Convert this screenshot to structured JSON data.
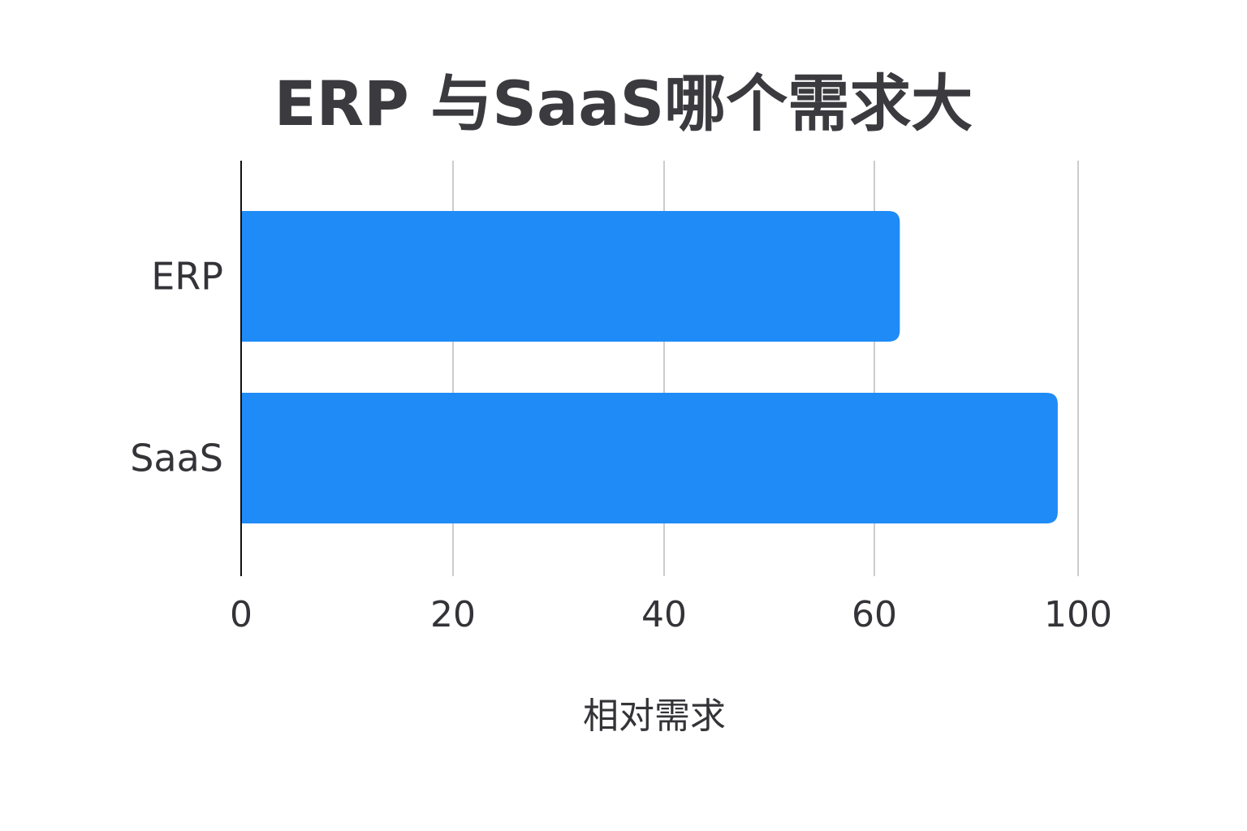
{
  "chart_data": {
    "type": "bar",
    "orientation": "horizontal",
    "title": "ERP 与SaaS哪个需求大",
    "xlabel": "相对需求",
    "ylabel": "",
    "categories": [
      "ERP",
      "SaaS"
    ],
    "values": [
      65,
      96
    ],
    "xticks": [
      "0",
      "20",
      "40",
      "60",
      "100"
    ],
    "xlim": [
      0,
      100
    ],
    "grid": "vertical",
    "legend": "none",
    "colors": {
      "bar": "#1f8bf7",
      "grid": "#cccccc",
      "axis": "#111111",
      "text": "#333338"
    }
  }
}
